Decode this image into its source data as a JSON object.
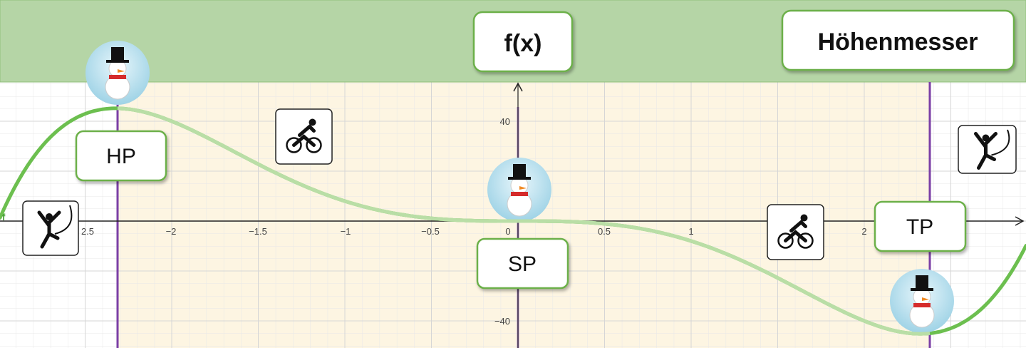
{
  "header": {
    "function_button": "f(x)",
    "altimeter_button": "Höhenmesser"
  },
  "points": {
    "maximum": "HP",
    "saddle": "SP",
    "minimum": "TP"
  },
  "graph": {
    "function_name": "f",
    "x_tick_labels": [
      "2.5",
      "−2",
      "−1.5",
      "−1",
      "−0.5",
      "0",
      "0.5",
      "1",
      "2"
    ],
    "y_tick_labels": [
      "40",
      "−40"
    ]
  }
}
